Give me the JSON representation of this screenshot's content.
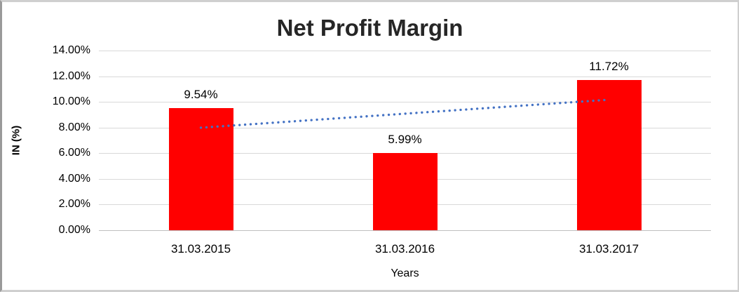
{
  "chart_data": {
    "type": "bar",
    "title": "Net Profit Margin",
    "xlabel": "Years",
    "ylabel": "IN (%)",
    "categories": [
      "31.03.2015",
      "31.03.2016",
      "31.03.2017"
    ],
    "values": [
      9.54,
      5.99,
      11.72
    ],
    "data_labels": [
      "9.54%",
      "5.99%",
      "11.72%"
    ],
    "y_tick_labels": [
      "0.00%",
      "2.00%",
      "4.00%",
      "6.00%",
      "8.00%",
      "10.00%",
      "12.00%",
      "14.00%"
    ],
    "ylim": [
      0,
      14
    ],
    "y_step": 2,
    "grid": "horizontal-on",
    "legend": "none",
    "bar_color": "#ff0000",
    "trendline": {
      "type": "linear",
      "style": "dotted",
      "color": "#4472c4",
      "start_value": 7.99,
      "end_value": 10.17
    },
    "colors": {
      "gridline": "#d9d9d9",
      "axis_line": "#bfbfbf",
      "text": "#000000",
      "title": "#262626",
      "frame_border": "#cfcfcf"
    }
  }
}
